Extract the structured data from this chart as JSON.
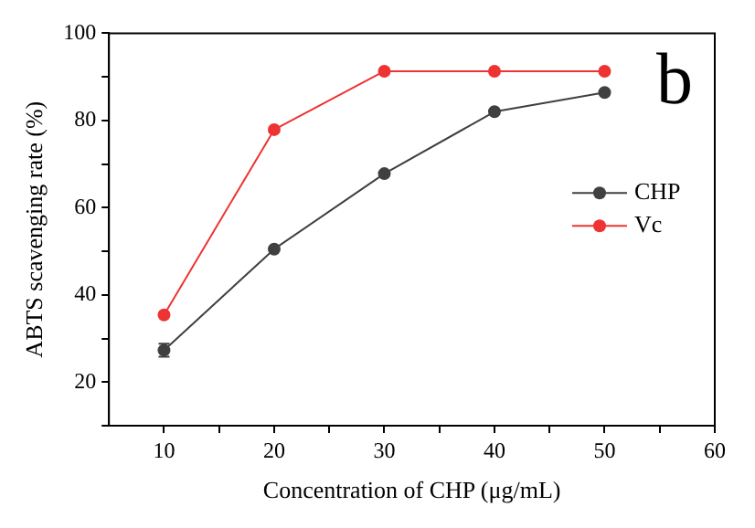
{
  "chart_data": {
    "type": "line",
    "xlabel": "Concentration of CHP (μg/mL)",
    "ylabel": "ABTS scavenging rate (%)",
    "annotations": [
      "b"
    ],
    "x": [
      10,
      20,
      30,
      40,
      50
    ],
    "series": [
      {
        "name": "CHP",
        "color": "#404040",
        "values": [
          27.3,
          50.5,
          67.8,
          82.0,
          86.4
        ],
        "errors": [
          1.5,
          null,
          null,
          null,
          null
        ]
      },
      {
        "name": "Vc",
        "color": "#ee3333",
        "values": [
          35.4,
          77.9,
          91.3,
          91.3,
          91.3
        ]
      }
    ],
    "xlim": [
      5,
      60
    ],
    "xticks": [
      10,
      {
        "value": 15,
        "label": null
      },
      20,
      {
        "value": 25,
        "label": null
      },
      30,
      {
        "value": 35,
        "label": null
      },
      40,
      {
        "value": 45,
        "label": null
      },
      50,
      {
        "value": 55,
        "label": null
      },
      60
    ],
    "ylim": [
      10,
      100
    ],
    "yticks": [
      {
        "value": 10,
        "label": null
      },
      20,
      {
        "value": 30,
        "label": null
      },
      40,
      {
        "value": 50,
        "label": null
      },
      60,
      {
        "value": 70,
        "label": null
      },
      80,
      {
        "value": 90,
        "label": null
      },
      100
    ],
    "grid": false,
    "legend": "right",
    "marker": "circle",
    "line_style": "solid"
  }
}
